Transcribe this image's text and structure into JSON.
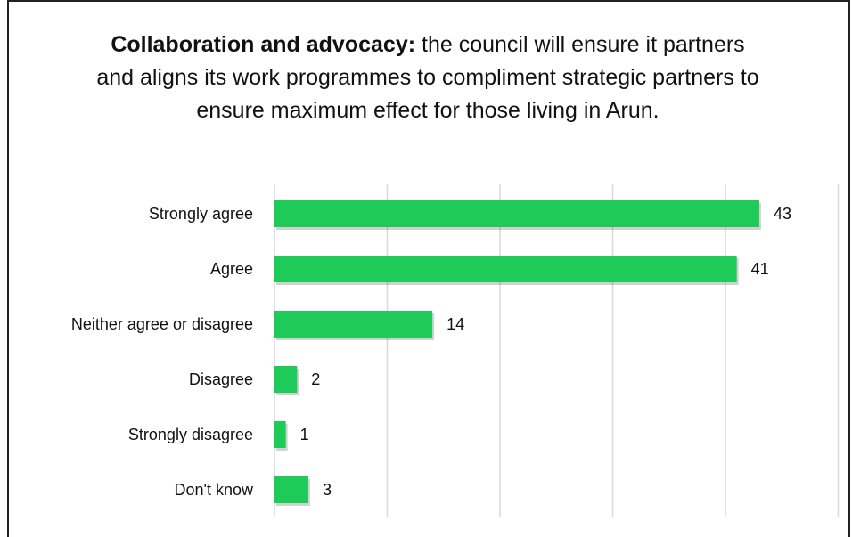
{
  "chart_data": {
    "type": "bar",
    "orientation": "horizontal",
    "title_bold": "Collaboration and advocacy:",
    "title_rest": " the council will ensure it partners and aligns its work programmes to compliment strategic partners to ensure maximum effect for those living in Arun.",
    "categories": [
      "Strongly agree",
      "Agree",
      "Neither agree or disagree",
      "Disagree",
      "Strongly disagree",
      "Don't know"
    ],
    "values": [
      43,
      41,
      14,
      2,
      1,
      3
    ],
    "xlim": [
      0,
      50
    ],
    "grid": true,
    "bar_color": "#1ECB58",
    "grid_color": "#D9D9D9"
  }
}
